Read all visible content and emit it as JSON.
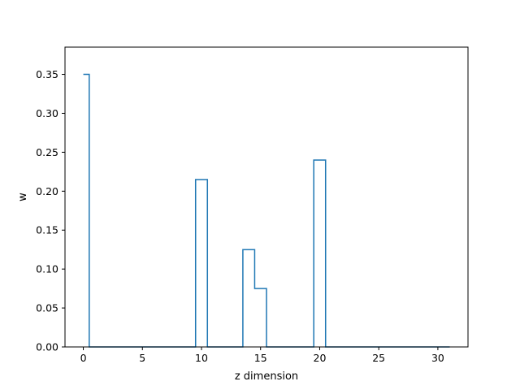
{
  "chart_data": {
    "type": "line",
    "drawstyle": "steps-mid",
    "xlabel": "z dimension",
    "ylabel": "w",
    "xlim": [
      -1.55,
      32.55
    ],
    "ylim": [
      0,
      0.385
    ],
    "xticks": [
      0,
      5,
      10,
      15,
      20,
      25,
      30
    ],
    "yticks": [
      0.0,
      0.05,
      0.1,
      0.15,
      0.2,
      0.25,
      0.3,
      0.35
    ],
    "ytick_labels": [
      "0.00",
      "0.05",
      "0.10",
      "0.15",
      "0.20",
      "0.25",
      "0.30",
      "0.35"
    ],
    "grid": false,
    "series": [
      {
        "color": "#1f77b4",
        "x": [
          0,
          1,
          2,
          3,
          4,
          5,
          6,
          7,
          8,
          9,
          10,
          11,
          12,
          13,
          14,
          15,
          16,
          17,
          18,
          19,
          20,
          21,
          22,
          23,
          24,
          25,
          26,
          27,
          28,
          29,
          30,
          31
        ],
        "y": [
          0.35,
          0,
          0,
          0,
          0,
          0,
          0,
          0,
          0,
          0,
          0.215,
          0,
          0,
          0,
          0.125,
          0.075,
          0,
          0,
          0,
          0,
          0.24,
          0,
          0,
          0,
          0,
          0,
          0,
          0,
          0,
          0,
          0,
          0
        ]
      }
    ]
  }
}
